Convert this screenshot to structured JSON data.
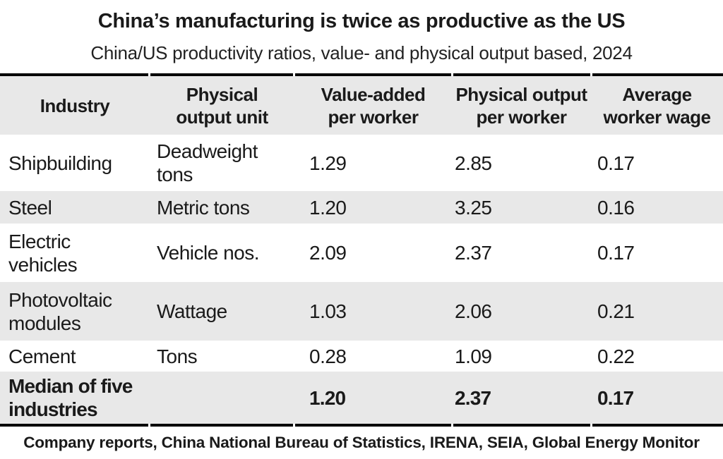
{
  "colors": {
    "row_shade": "#e8e8e8",
    "text": "#1a1a1a",
    "rule": "#000000",
    "background": "#ffffff"
  },
  "chart_data": {
    "type": "table",
    "title": "China’s manufacturing is twice as productive as the US",
    "subtitle": "China/US productivity ratios, value- and physical output based, 2024",
    "columns": [
      "Industry",
      "Physical\noutput unit",
      "Value-added\nper worker",
      "Physical output\nper worker",
      "Average\nworker wage"
    ],
    "rows": [
      [
        "Shipbuilding",
        "Deadweight\ntons",
        "1.29",
        "2.85",
        "0.17"
      ],
      [
        "Steel",
        "Metric tons",
        "1.20",
        "3.25",
        "0.16"
      ],
      [
        "Electric\nvehicles",
        "Vehicle nos.",
        "2.09",
        "2.37",
        "0.17"
      ],
      [
        "Photovoltaic\nmodules",
        "Wattage",
        "1.03",
        "2.06",
        "0.21"
      ],
      [
        "Cement",
        "Tons",
        "0.28",
        "1.09",
        "0.22"
      ],
      [
        "Median of five\nindustries",
        "",
        "1.20",
        "2.37",
        "0.17"
      ]
    ],
    "source": "Company reports, China National Bureau of Statistics, IRENA, SEIA, Global Energy Monitor"
  }
}
